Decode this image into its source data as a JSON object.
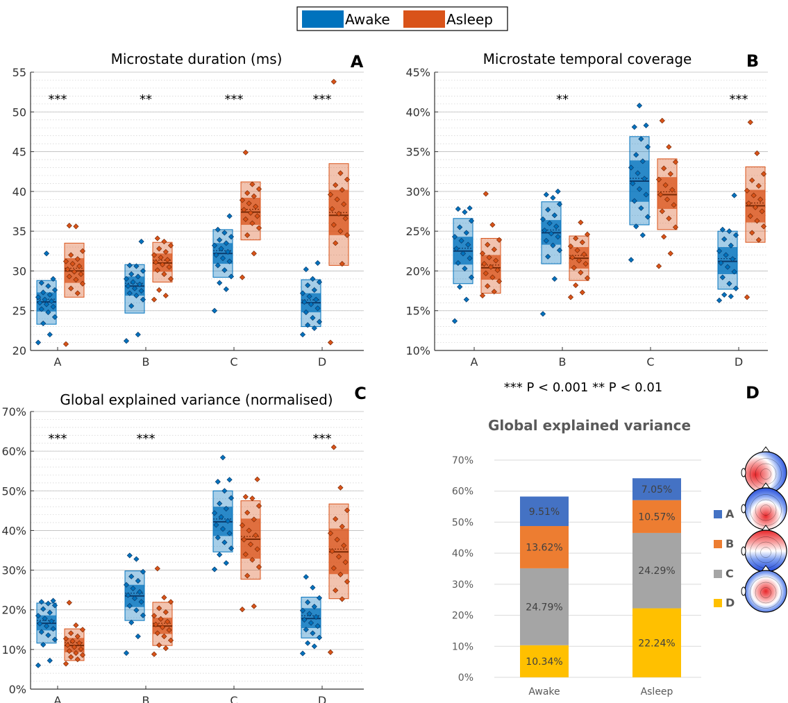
{
  "legend": {
    "entries": [
      {
        "label": "Awake",
        "color": "#0072BD"
      },
      {
        "label": "Asleep",
        "color": "#D95319"
      }
    ]
  },
  "significance_note": "*** P < 0.001  ** P < 0.01",
  "chart_data": [
    {
      "panel": "A",
      "type": "scatter",
      "title": "Microstate duration (ms)",
      "categories": [
        "A",
        "B",
        "C",
        "D"
      ],
      "ylim": [
        20,
        55
      ],
      "yticks": [
        20,
        25,
        30,
        35,
        40,
        45,
        50,
        55
      ],
      "ytick_labels": [
        "20",
        "25",
        "30",
        "35",
        "40",
        "45",
        "50",
        "55"
      ],
      "significance": [
        "***",
        "**",
        "***",
        "***"
      ],
      "grid": true,
      "groups": [
        {
          "condition": "Awake",
          "color": "#0072BD",
          "boxes": [
            {
              "category": "A",
              "mean": 26.1,
              "sem_low": 24.9,
              "sem_high": 27.3,
              "sd_low": 23.3,
              "sd_high": 28.8,
              "points": [
                21.0,
                22.0,
                23.4,
                24.2,
                24.8,
                25.2,
                25.5,
                25.8,
                26.0,
                26.2,
                26.4,
                26.7,
                27.0,
                27.3,
                27.6,
                28.1,
                28.5,
                29.0,
                32.2
              ]
            },
            {
              "category": "B",
              "mean": 28.1,
              "sem_low": 26.9,
              "sem_high": 29.3,
              "sd_low": 24.7,
              "sd_high": 30.8,
              "points": [
                21.2,
                22.0,
                25.6,
                26.4,
                26.9,
                27.2,
                27.5,
                27.8,
                28.1,
                28.3,
                28.6,
                29.0,
                29.3,
                29.6,
                30.0,
                30.6,
                30.7,
                33.7
              ]
            },
            {
              "category": "C",
              "mean": 32.2,
              "sem_low": 30.9,
              "sem_high": 33.5,
              "sd_low": 29.2,
              "sd_high": 35.2,
              "points": [
                25.0,
                27.7,
                28.5,
                29.3,
                30.1,
                30.7,
                31.2,
                31.6,
                32.0,
                32.4,
                32.8,
                33.2,
                33.5,
                33.9,
                34.3,
                34.8,
                35.2,
                36.9
              ]
            },
            {
              "category": "D",
              "mean": 26.0,
              "sem_low": 24.8,
              "sem_high": 27.2,
              "sd_low": 23.0,
              "sd_high": 28.9,
              "points": [
                22.0,
                22.8,
                23.2,
                23.6,
                24.1,
                24.8,
                25.3,
                25.8,
                26.1,
                26.4,
                26.8,
                27.2,
                27.6,
                28.2,
                28.6,
                29.0,
                30.2,
                31.0
              ]
            }
          ]
        },
        {
          "condition": "Asleep",
          "color": "#D95319",
          "boxes": [
            {
              "category": "A",
              "mean": 30.0,
              "sem_low": 28.5,
              "sem_high": 31.6,
              "sd_low": 26.7,
              "sd_high": 33.5,
              "points": [
                20.8,
                27.2,
                27.8,
                28.4,
                28.9,
                29.3,
                29.6,
                29.9,
                30.2,
                30.6,
                30.9,
                31.2,
                31.5,
                32.0,
                32.5,
                35.6,
                35.7
              ]
            },
            {
              "category": "B",
              "mean": 31.0,
              "sem_low": 29.9,
              "sem_high": 32.2,
              "sd_low": 28.6,
              "sd_high": 33.6,
              "points": [
                26.4,
                26.9,
                27.6,
                29.0,
                29.6,
                30.1,
                30.5,
                30.8,
                31.1,
                31.4,
                31.7,
                32.0,
                32.4,
                32.8,
                33.2,
                33.7,
                34.1
              ]
            },
            {
              "category": "C",
              "mean": 37.4,
              "sem_low": 35.8,
              "sem_high": 39.2,
              "sd_low": 33.9,
              "sd_high": 41.2,
              "points": [
                29.2,
                32.2,
                34.5,
                35.4,
                36.0,
                36.5,
                36.9,
                37.3,
                37.7,
                38.1,
                38.5,
                38.9,
                39.4,
                39.8,
                40.3,
                40.9,
                44.9
              ]
            },
            {
              "category": "D",
              "mean": 37.0,
              "sem_low": 34.5,
              "sem_high": 40.2,
              "sd_low": 30.7,
              "sd_high": 43.5,
              "points": [
                21.0,
                30.9,
                33.5,
                34.5,
                35.0,
                35.8,
                36.6,
                37.2,
                37.8,
                38.4,
                39.0,
                39.6,
                40.2,
                40.8,
                41.5,
                42.3,
                53.8
              ]
            }
          ]
        }
      ]
    },
    {
      "panel": "B",
      "type": "scatter",
      "title": "Microstate temporal coverage",
      "categories": [
        "A",
        "B",
        "C",
        "D"
      ],
      "ylim": [
        10,
        45
      ],
      "yticks": [
        10,
        15,
        20,
        25,
        30,
        35,
        40,
        45
      ],
      "ytick_labels": [
        "10%",
        "15%",
        "20%",
        "25%",
        "30%",
        "35%",
        "40%",
        "45%"
      ],
      "significance": [
        "",
        "**",
        "",
        "***"
      ],
      "grid": true,
      "groups": [
        {
          "condition": "Awake",
          "color": "#0072BD",
          "boxes": [
            {
              "category": "A",
              "mean": 22.5,
              "sem_low": 20.8,
              "sem_high": 24.3,
              "sd_low": 18.4,
              "sd_high": 26.6,
              "points": [
                13.7,
                16.4,
                18.0,
                19.2,
                20.3,
                21.0,
                21.6,
                22.2,
                22.8,
                23.3,
                23.8,
                24.3,
                24.8,
                25.5,
                26.3,
                27.4,
                27.8,
                27.9
              ]
            },
            {
              "category": "B",
              "mean": 24.8,
              "sem_low": 23.3,
              "sem_high": 26.4,
              "sd_low": 20.9,
              "sd_high": 28.7,
              "points": [
                14.6,
                19.0,
                21.8,
                22.6,
                23.2,
                23.8,
                24.3,
                24.7,
                25.1,
                25.6,
                26.0,
                26.5,
                27.0,
                27.7,
                28.4,
                29.2,
                29.6,
                30.0
              ]
            },
            {
              "category": "C",
              "mean": 31.3,
              "sem_low": 28.7,
              "sem_high": 33.9,
              "sd_low": 25.8,
              "sd_high": 36.9,
              "points": [
                21.4,
                24.5,
                25.6,
                26.8,
                27.9,
                28.8,
                29.6,
                30.3,
                31.0,
                31.6,
                32.3,
                33.0,
                33.8,
                34.6,
                35.6,
                36.6,
                38.1,
                38.3,
                40.8
              ]
            },
            {
              "category": "D",
              "mean": 21.2,
              "sem_low": 19.6,
              "sem_high": 23.0,
              "sd_low": 17.7,
              "sd_high": 25.0,
              "points": [
                16.3,
                16.8,
                17.0,
                17.8,
                18.4,
                19.2,
                19.9,
                20.5,
                21.0,
                21.5,
                22.0,
                22.5,
                23.2,
                24.0,
                24.5,
                25.0,
                25.2,
                29.5
              ]
            }
          ]
        },
        {
          "condition": "Asleep",
          "color": "#D95319",
          "boxes": [
            {
              "category": "A",
              "mean": 20.4,
              "sem_low": 18.9,
              "sem_high": 22.0,
              "sd_low": 17.2,
              "sd_high": 24.1,
              "points": [
                16.9,
                17.4,
                18.1,
                18.7,
                19.2,
                19.7,
                20.1,
                20.5,
                20.9,
                21.3,
                21.7,
                22.2,
                22.7,
                23.3,
                23.9,
                25.8,
                29.7
              ]
            },
            {
              "category": "B",
              "mean": 21.6,
              "sem_low": 20.3,
              "sem_high": 23.0,
              "sd_low": 18.8,
              "sd_high": 24.4,
              "points": [
                16.7,
                17.3,
                18.2,
                19.1,
                19.8,
                20.4,
                20.9,
                21.3,
                21.7,
                22.1,
                22.6,
                23.1,
                23.6,
                24.1,
                24.6,
                26.1
              ]
            },
            {
              "category": "C",
              "mean": 29.6,
              "sem_low": 27.8,
              "sem_high": 31.8,
              "sd_low": 25.2,
              "sd_high": 34.1,
              "points": [
                20.6,
                22.2,
                24.3,
                25.5,
                26.6,
                27.5,
                28.3,
                29.0,
                29.6,
                30.2,
                30.8,
                31.5,
                32.2,
                32.9,
                33.7,
                35.6,
                38.9
              ]
            },
            {
              "category": "D",
              "mean": 28.2,
              "sem_low": 26.1,
              "sem_high": 30.2,
              "sd_low": 23.6,
              "sd_high": 33.1,
              "points": [
                16.7,
                23.9,
                24.8,
                25.6,
                26.3,
                26.9,
                27.5,
                28.0,
                28.5,
                29.0,
                29.5,
                30.1,
                30.7,
                31.4,
                32.2,
                34.8,
                38.7
              ]
            }
          ]
        }
      ]
    },
    {
      "panel": "C",
      "type": "scatter",
      "title": "Global explained variance (normalised)",
      "categories": [
        "A",
        "B",
        "C",
        "D"
      ],
      "ylim": [
        0,
        70
      ],
      "yticks": [
        0,
        10,
        20,
        30,
        40,
        50,
        60,
        70
      ],
      "ytick_labels": [
        "0%",
        "10%",
        "20%",
        "30%",
        "40%",
        "50%",
        "60%",
        "70%"
      ],
      "significance": [
        "***",
        "***",
        "",
        "***"
      ],
      "grid": true,
      "groups": [
        {
          "condition": "Awake",
          "color": "#0072BD",
          "boxes": [
            {
              "category": "A",
              "mean": 16.6,
              "sem_low": 14.8,
              "sem_high": 18.6,
              "sd_low": 11.6,
              "sd_high": 21.7,
              "points": [
                6.0,
                7.2,
                11.2,
                12.5,
                13.6,
                14.4,
                15.2,
                15.9,
                16.5,
                17.1,
                17.8,
                18.5,
                19.3,
                20.2,
                21.1,
                21.6,
                22.0,
                22.3
              ]
            },
            {
              "category": "B",
              "mean": 23.5,
              "sem_low": 20.7,
              "sem_high": 26.3,
              "sd_low": 17.3,
              "sd_high": 29.8,
              "points": [
                9.1,
                13.3,
                16.8,
                18.6,
                19.9,
                21.0,
                22.0,
                22.9,
                23.7,
                24.5,
                25.4,
                26.3,
                27.3,
                28.4,
                29.6,
                32.8,
                33.7
              ]
            },
            {
              "category": "C",
              "mean": 42.2,
              "sem_low": 38.6,
              "sem_high": 46.0,
              "sd_low": 34.6,
              "sd_high": 50.0,
              "points": [
                30.2,
                31.8,
                33.9,
                35.5,
                37.0,
                38.2,
                39.3,
                40.4,
                41.4,
                42.4,
                43.4,
                44.4,
                45.5,
                46.8,
                48.2,
                50.0,
                52.3,
                52.8,
                58.4
              ]
            },
            {
              "category": "D",
              "mean": 17.8,
              "sem_low": 15.4,
              "sem_high": 20.4,
              "sd_low": 12.9,
              "sd_high": 23.2,
              "points": [
                9.0,
                10.8,
                11.6,
                13.0,
                14.1,
                15.0,
                15.9,
                16.7,
                17.5,
                18.2,
                19.0,
                19.8,
                20.8,
                21.9,
                23.0,
                25.6,
                28.3
              ]
            }
          ]
        },
        {
          "condition": "Asleep",
          "color": "#D95319",
          "boxes": [
            {
              "category": "A",
              "mean": 11.0,
              "sem_low": 9.3,
              "sem_high": 12.9,
              "sd_low": 7.2,
              "sd_high": 15.2,
              "points": [
                6.4,
                7.5,
                8.1,
                8.6,
                9.1,
                9.6,
                10.1,
                10.6,
                11.1,
                11.6,
                12.1,
                12.7,
                13.3,
                14.1,
                15.0,
                16.1,
                21.8
              ]
            },
            {
              "category": "B",
              "mean": 15.9,
              "sem_low": 13.9,
              "sem_high": 18.0,
              "sd_low": 11.0,
              "sd_high": 21.9,
              "points": [
                8.8,
                10.3,
                11.1,
                12.3,
                13.3,
                14.1,
                14.9,
                15.6,
                16.3,
                17.0,
                17.7,
                18.5,
                19.4,
                20.4,
                22.0,
                23.1,
                30.4
              ]
            },
            {
              "category": "C",
              "mean": 37.8,
              "sem_low": 32.9,
              "sem_high": 43.0,
              "sd_low": 27.7,
              "sd_high": 47.5,
              "points": [
                20.1,
                20.9,
                28.6,
                30.8,
                32.6,
                34.0,
                35.3,
                36.5,
                37.7,
                38.8,
                40.0,
                41.3,
                42.8,
                44.5,
                46.2,
                48.1,
                48.5,
                52.9
              ]
            },
            {
              "category": "D",
              "mean": 34.6,
              "sem_low": 29.0,
              "sem_high": 40.5,
              "sd_low": 22.8,
              "sd_high": 46.7,
              "points": [
                9.3,
                22.7,
                24.9,
                27.1,
                28.9,
                30.5,
                32.0,
                33.4,
                34.8,
                36.2,
                37.7,
                39.3,
                41.0,
                42.9,
                45.1,
                50.8,
                61.0
              ]
            }
          ]
        }
      ]
    },
    {
      "panel": "D",
      "type": "bar",
      "stacked": true,
      "title": "Global explained variance",
      "categories": [
        "Awake",
        "Asleep"
      ],
      "ylim": [
        0,
        70
      ],
      "yticks": [
        0,
        10,
        20,
        30,
        40,
        50,
        60,
        70
      ],
      "ytick_labels": [
        "0%",
        "10%",
        "20%",
        "30%",
        "40%",
        "50%",
        "60%",
        "70%"
      ],
      "legend_placement": "right",
      "series": [
        {
          "name": "D",
          "color": "#FFC000",
          "values": [
            10.34,
            22.24
          ],
          "labels": [
            "10.34%",
            "22.24%"
          ]
        },
        {
          "name": "C",
          "color": "#A5A5A5",
          "values": [
            24.79,
            24.29
          ],
          "labels": [
            "24.79%",
            "24.29%"
          ]
        },
        {
          "name": "B",
          "color": "#ED7D31",
          "values": [
            13.62,
            10.57
          ],
          "labels": [
            "13.62%",
            "10.57%"
          ]
        },
        {
          "name": "A",
          "color": "#4472C4",
          "values": [
            9.51,
            7.05
          ],
          "labels": [
            "9.51%",
            "7.05%"
          ]
        }
      ],
      "legend_order": [
        "A",
        "B",
        "C",
        "D"
      ]
    }
  ]
}
